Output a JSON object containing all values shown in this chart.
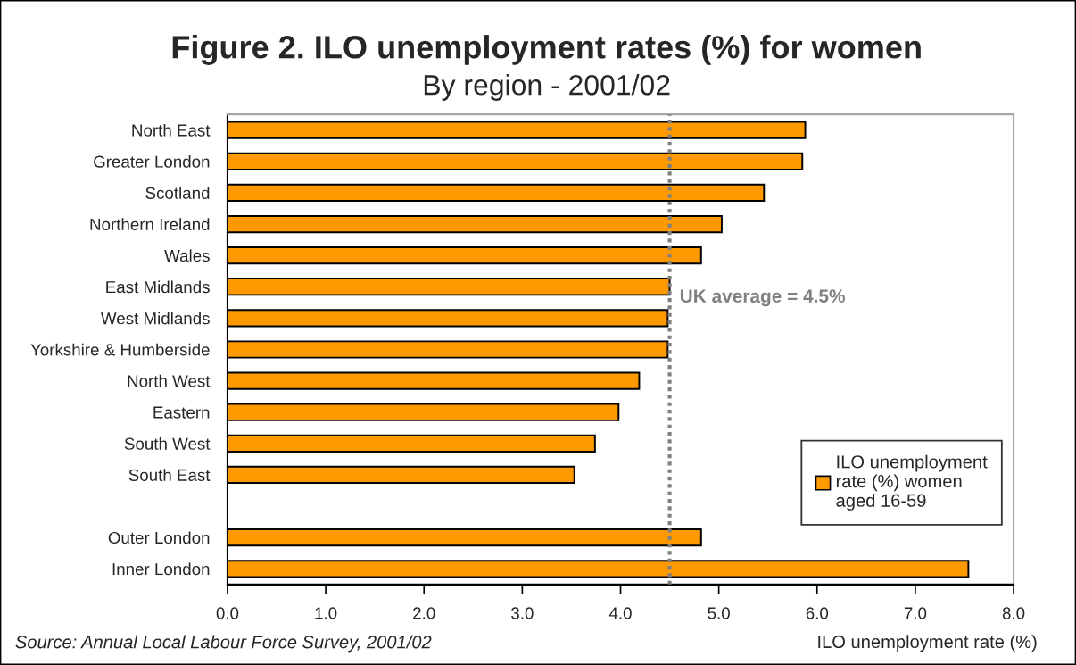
{
  "chart_data": {
    "type": "bar",
    "orientation": "horizontal",
    "title": "Figure 2. ILO unemployment rates (%) for women",
    "subtitle": "By region - 2001/02",
    "xlabel": "ILO unemployment rate (%)",
    "annotations": [
      "Source: Annual Local Labour Force Survey, 2001/02"
    ],
    "categories": [
      "North East",
      "Greater London",
      "Scotland",
      "Northern Ireland",
      "Wales",
      "East Midlands",
      "West Midlands",
      "Yorkshire & Humberside",
      "North West",
      "Eastern",
      "South West",
      "South East",
      null,
      "Outer London",
      "Inner London"
    ],
    "series": [
      {
        "name": "ILO unemployment\nrate (%) women\naged 16-59",
        "color": "#ff9900",
        "values": [
          5.88,
          5.85,
          5.46,
          5.03,
          4.82,
          4.5,
          4.48,
          4.48,
          4.19,
          3.98,
          3.74,
          3.53,
          null,
          4.82,
          7.54
        ]
      }
    ],
    "xlim": [
      0,
      8
    ],
    "xticks": [
      {
        "value": 0,
        "label": "0.0"
      },
      {
        "value": 1,
        "label": "1.0"
      },
      {
        "value": 2,
        "label": "2.0"
      },
      {
        "value": 3,
        "label": "3.0"
      },
      {
        "value": 4,
        "label": "4.0"
      },
      {
        "value": 5,
        "label": "5.0"
      },
      {
        "value": 6,
        "label": "6.0"
      },
      {
        "value": 7,
        "label": "7.0"
      },
      {
        "value": 8,
        "label": "8.0"
      }
    ],
    "ref_lines": [
      {
        "axis": "x",
        "value": 4.5,
        "label": "UK average = 4.5%",
        "color": "#808080",
        "line_style": "dotted"
      }
    ],
    "legend": "bottom right"
  }
}
